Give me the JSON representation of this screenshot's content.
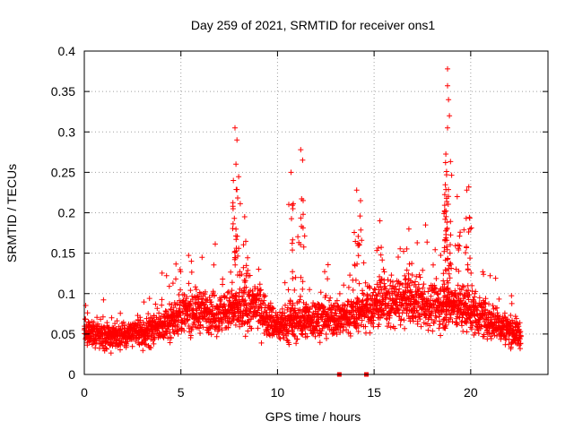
{
  "chart_data": {
    "type": "scatter",
    "title": "Day 259 of 2021, SRMTID for receiver ons1",
    "xlabel": "GPS time / hours",
    "ylabel": "SRMTID / TECUs",
    "xlim": [
      0,
      24
    ],
    "ylim": [
      0,
      0.4
    ],
    "xticks": [
      0,
      5,
      10,
      15,
      20
    ],
    "xtick_labels": [
      "0",
      "5",
      "10",
      "15",
      "20"
    ],
    "yticks": [
      0,
      0.05,
      0.1,
      0.15,
      0.2,
      0.25,
      0.3,
      0.35,
      0.4
    ],
    "ytick_labels": [
      "0",
      "0.05",
      "0.1",
      "0.15",
      "0.2",
      "0.25",
      "0.3",
      "0.35",
      "0.4"
    ],
    "grid": true,
    "marker": "+",
    "color": "#ff0000",
    "series": [
      {
        "name": "SRMTID",
        "baseline": [
          [
            0.0,
            0.055
          ],
          [
            1.0,
            0.045
          ],
          [
            2.0,
            0.05
          ],
          [
            3.0,
            0.05
          ],
          [
            4.0,
            0.06
          ],
          [
            5.0,
            0.075
          ],
          [
            6.0,
            0.08
          ],
          [
            7.0,
            0.075
          ],
          [
            8.0,
            0.08
          ],
          [
            9.0,
            0.085
          ],
          [
            9.5,
            0.07
          ],
          [
            10.0,
            0.06
          ],
          [
            11.0,
            0.065
          ],
          [
            12.0,
            0.07
          ],
          [
            13.0,
            0.07
          ],
          [
            14.0,
            0.075
          ],
          [
            15.0,
            0.085
          ],
          [
            16.0,
            0.09
          ],
          [
            17.0,
            0.09
          ],
          [
            18.0,
            0.085
          ],
          [
            19.0,
            0.085
          ],
          [
            20.0,
            0.08
          ],
          [
            21.0,
            0.065
          ],
          [
            22.0,
            0.055
          ],
          [
            22.6,
            0.05
          ]
        ],
        "spikes": [
          [
            7.8,
            0.305
          ],
          [
            7.9,
            0.29
          ],
          [
            7.85,
            0.26
          ],
          [
            7.7,
            0.205
          ],
          [
            8.3,
            0.195
          ],
          [
            11.2,
            0.278
          ],
          [
            11.3,
            0.265
          ],
          [
            10.7,
            0.25
          ],
          [
            10.8,
            0.205
          ],
          [
            14.1,
            0.228
          ],
          [
            14.3,
            0.215
          ],
          [
            15.3,
            0.19
          ],
          [
            16.8,
            0.18
          ],
          [
            18.8,
            0.378
          ],
          [
            18.8,
            0.357
          ],
          [
            18.85,
            0.34
          ],
          [
            18.9,
            0.32
          ],
          [
            18.8,
            0.305
          ],
          [
            18.7,
            0.262
          ],
          [
            18.75,
            0.247
          ],
          [
            19.9,
            0.232
          ],
          [
            19.8,
            0.228
          ],
          [
            19.3,
            0.22
          ]
        ],
        "zero_points": [
          [
            13.2,
            0.0
          ],
          [
            14.6,
            0.0
          ]
        ]
      }
    ]
  }
}
